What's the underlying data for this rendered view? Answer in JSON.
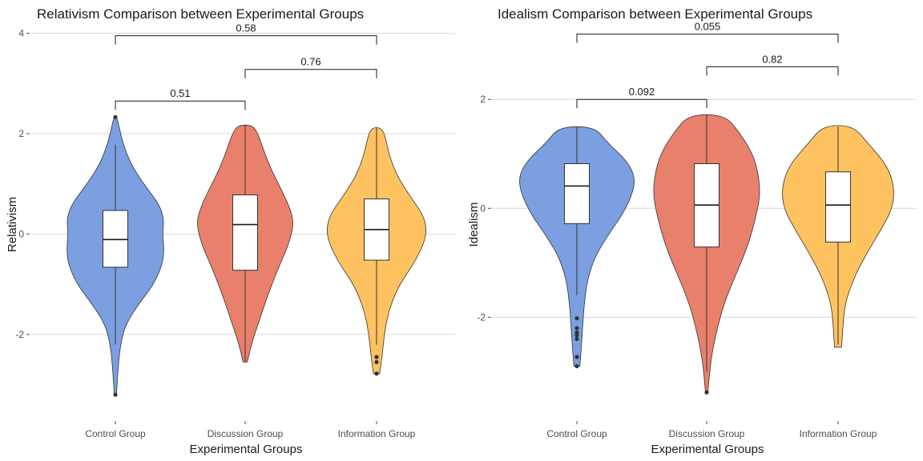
{
  "chart_data": [
    {
      "type": "violin",
      "title": "Relativism Comparison between Experimental Groups",
      "xlabel": "Experimental Groups",
      "ylabel": "Relativism",
      "ylim": [
        -3.5,
        4.2
      ],
      "yticks": [
        -2,
        0,
        2,
        4
      ],
      "grid": true,
      "categories": [
        "Control Group",
        "Discussion Group",
        "Information Group"
      ],
      "colors": [
        "#7b9fe0",
        "#e9806b",
        "#fec260"
      ],
      "groups": [
        {
          "name": "Control Group",
          "box": {
            "q1": -0.66,
            "median": -0.11,
            "q3": 0.47,
            "whisker_low": -2.2,
            "whisker_high": 1.78
          },
          "outliers": [
            2.33,
            -3.2
          ],
          "range": [
            -3.2,
            2.33
          ],
          "density_profile": [
            [
              -3.2,
              0.02
            ],
            [
              -2.9,
              0.04
            ],
            [
              -2.6,
              0.06
            ],
            [
              -2.2,
              0.1
            ],
            [
              -1.8,
              0.2
            ],
            [
              -1.4,
              0.45
            ],
            [
              -1.0,
              0.75
            ],
            [
              -0.6,
              0.92
            ],
            [
              -0.3,
              0.95
            ],
            [
              0,
              0.92
            ],
            [
              0.3,
              0.95
            ],
            [
              0.6,
              0.85
            ],
            [
              1.0,
              0.55
            ],
            [
              1.4,
              0.3
            ],
            [
              1.8,
              0.15
            ],
            [
              2.1,
              0.08
            ],
            [
              2.33,
              0.03
            ]
          ]
        },
        {
          "name": "Discussion Group",
          "box": {
            "q1": -0.72,
            "median": 0.19,
            "q3": 0.78,
            "whisker_low": -2.55,
            "whisker_high": 2.17
          },
          "outliers": [],
          "range": [
            -2.55,
            2.17
          ],
          "density_profile": [
            [
              -2.55,
              0.04
            ],
            [
              -2.2,
              0.12
            ],
            [
              -1.8,
              0.25
            ],
            [
              -1.4,
              0.38
            ],
            [
              -1.0,
              0.52
            ],
            [
              -0.6,
              0.68
            ],
            [
              -0.2,
              0.85
            ],
            [
              0.2,
              0.95
            ],
            [
              0.5,
              0.88
            ],
            [
              0.9,
              0.7
            ],
            [
              1.3,
              0.5
            ],
            [
              1.7,
              0.35
            ],
            [
              2.0,
              0.25
            ],
            [
              2.17,
              0.14
            ]
          ]
        },
        {
          "name": "Information Group",
          "box": {
            "q1": -0.52,
            "median": 0.09,
            "q3": 0.7,
            "whisker_low": -2.2,
            "whisker_high": 2.12
          },
          "outliers": [
            -2.45,
            -2.55,
            -2.78
          ],
          "range": [
            -2.78,
            2.12
          ],
          "density_profile": [
            [
              -2.78,
              0.06
            ],
            [
              -2.5,
              0.1
            ],
            [
              -2.2,
              0.13
            ],
            [
              -1.8,
              0.18
            ],
            [
              -1.4,
              0.28
            ],
            [
              -1.0,
              0.45
            ],
            [
              -0.6,
              0.72
            ],
            [
              -0.2,
              0.92
            ],
            [
              0.1,
              0.98
            ],
            [
              0.4,
              0.9
            ],
            [
              0.8,
              0.62
            ],
            [
              1.2,
              0.38
            ],
            [
              1.6,
              0.24
            ],
            [
              1.9,
              0.18
            ],
            [
              2.12,
              0.1
            ]
          ]
        }
      ],
      "comparisons": [
        {
          "from": 0,
          "to": 1,
          "p": "0.51",
          "y": 2.65
        },
        {
          "from": 1,
          "to": 2,
          "p": "0.76",
          "y": 3.28
        },
        {
          "from": 0,
          "to": 2,
          "p": "0.58",
          "y": 3.95
        }
      ]
    },
    {
      "type": "violin",
      "title": "Idealism Comparison between Experimental Groups",
      "xlabel": "Experimental Groups",
      "ylabel": "Idealism",
      "ylim": [
        -3.7,
        3.4
      ],
      "yticks": [
        -2,
        0,
        2
      ],
      "grid": true,
      "categories": [
        "Control Group",
        "Discussion Group",
        "Information Group"
      ],
      "colors": [
        "#7b9fe0",
        "#e9806b",
        "#fec260"
      ],
      "groups": [
        {
          "name": "Control Group",
          "box": {
            "q1": -0.28,
            "median": 0.41,
            "q3": 0.82,
            "whisker_low": -1.6,
            "whisker_high": 1.5
          },
          "outliers": [
            -2.02,
            -2.2,
            -2.28,
            -2.33,
            -2.4,
            -2.73,
            -2.9
          ],
          "range": [
            -2.9,
            1.5
          ],
          "density_profile": [
            [
              -2.9,
              0.05
            ],
            [
              -2.5,
              0.08
            ],
            [
              -2.1,
              0.1
            ],
            [
              -1.7,
              0.13
            ],
            [
              -1.3,
              0.18
            ],
            [
              -0.9,
              0.3
            ],
            [
              -0.5,
              0.52
            ],
            [
              -0.1,
              0.78
            ],
            [
              0.3,
              0.95
            ],
            [
              0.6,
              0.98
            ],
            [
              0.9,
              0.82
            ],
            [
              1.2,
              0.52
            ],
            [
              1.5,
              0.3
            ]
          ]
        },
        {
          "name": "Discussion Group",
          "box": {
            "q1": -0.71,
            "median": 0.06,
            "q3": 0.82,
            "whisker_low": -3.0,
            "whisker_high": 1.72
          },
          "outliers": [
            -3.38
          ],
          "range": [
            -3.38,
            1.72
          ],
          "density_profile": [
            [
              -3.38,
              0.02
            ],
            [
              -3.0,
              0.05
            ],
            [
              -2.6,
              0.1
            ],
            [
              -2.2,
              0.18
            ],
            [
              -1.8,
              0.28
            ],
            [
              -1.4,
              0.42
            ],
            [
              -1.0,
              0.58
            ],
            [
              -0.6,
              0.72
            ],
            [
              -0.2,
              0.82
            ],
            [
              0.2,
              0.9
            ],
            [
              0.6,
              0.88
            ],
            [
              1.0,
              0.78
            ],
            [
              1.4,
              0.55
            ],
            [
              1.72,
              0.3
            ]
          ]
        },
        {
          "name": "Information Group",
          "box": {
            "q1": -0.62,
            "median": 0.06,
            "q3": 0.67,
            "whisker_low": -2.5,
            "whisker_high": 1.5
          },
          "outliers": [],
          "range": [
            -2.55,
            1.52
          ],
          "density_profile": [
            [
              -2.55,
              0.06
            ],
            [
              -2.2,
              0.08
            ],
            [
              -1.9,
              0.1
            ],
            [
              -1.6,
              0.16
            ],
            [
              -1.2,
              0.3
            ],
            [
              -0.8,
              0.5
            ],
            [
              -0.4,
              0.72
            ],
            [
              0,
              0.92
            ],
            [
              0.4,
              0.95
            ],
            [
              0.8,
              0.82
            ],
            [
              1.2,
              0.5
            ],
            [
              1.52,
              0.25
            ]
          ]
        }
      ],
      "comparisons": [
        {
          "from": 0,
          "to": 1,
          "p": "0.092",
          "y": 2.0
        },
        {
          "from": 1,
          "to": 2,
          "p": "0.82",
          "y": 2.6
        },
        {
          "from": 0,
          "to": 2,
          "p": "0.055",
          "y": 3.2
        }
      ]
    }
  ]
}
